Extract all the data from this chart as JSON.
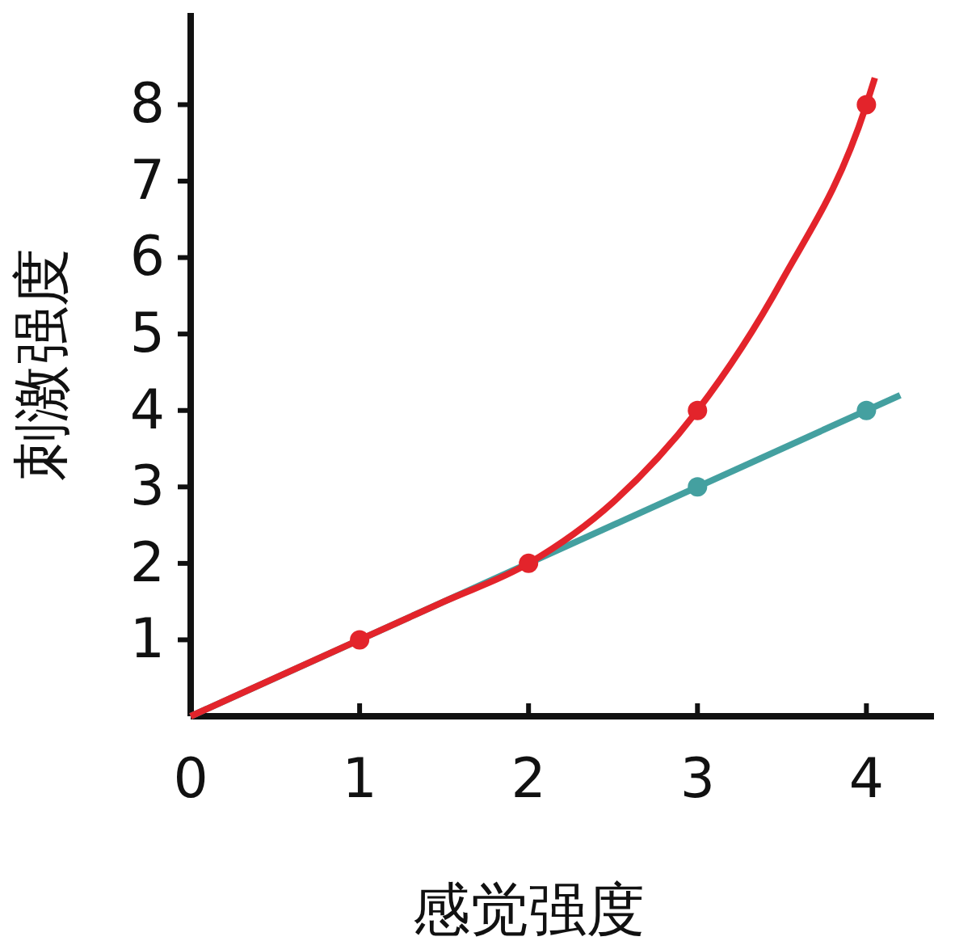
{
  "chart_data": {
    "type": "line",
    "xlabel": "感觉强度",
    "ylabel": "刺激强度",
    "xlim": [
      0,
      4.4
    ],
    "ylim": [
      0,
      9.2
    ],
    "xticks": [
      0,
      1,
      2,
      3,
      4
    ],
    "yticks": [
      1,
      2,
      3,
      4,
      5,
      6,
      7,
      8
    ],
    "grid": false,
    "series": [
      {
        "type": "line",
        "color": "#44a0a0",
        "x": [
          0,
          4.2
        ],
        "values": [
          0,
          4.2
        ]
      },
      {
        "type": "scatter",
        "color": "#44a0a0",
        "x": [
          3,
          4
        ],
        "values": [
          3,
          4
        ]
      },
      {
        "type": "line",
        "color": "#e3242b",
        "x": [
          0,
          1,
          1.5,
          2,
          2.5,
          3,
          3.5,
          4,
          4.05
        ],
        "values": [
          0,
          1,
          1.5,
          2,
          2.8,
          4,
          5.7,
          8,
          8.35
        ]
      },
      {
        "type": "scatter",
        "color": "#e3242b",
        "x": [
          1,
          2,
          3,
          4
        ],
        "values": [
          1,
          2,
          4,
          8
        ]
      }
    ]
  }
}
